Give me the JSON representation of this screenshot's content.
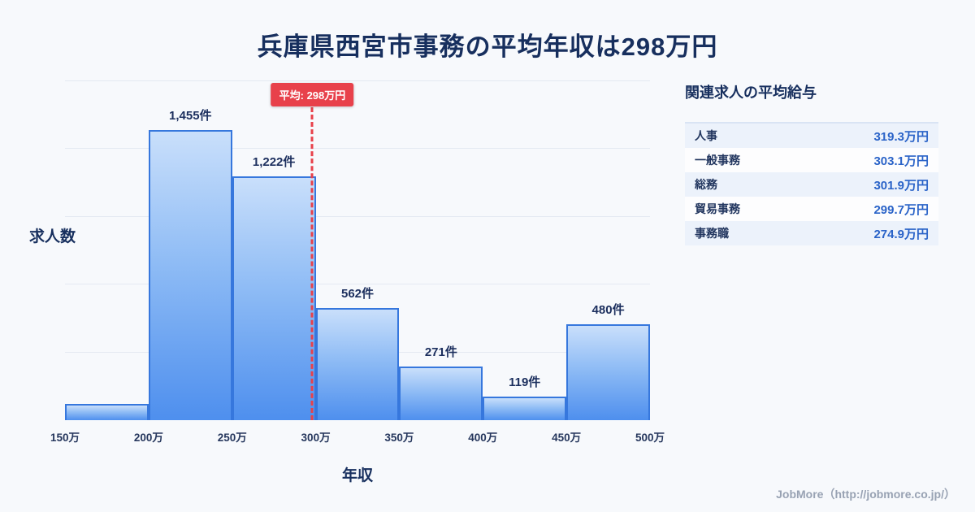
{
  "page_title": "兵庫県西宮市事務の平均年収は298万円",
  "chart_data": {
    "type": "bar",
    "title": "兵庫県西宮市事務の平均年収は298万円",
    "xlabel": "年収",
    "ylabel": "求人数",
    "x_range": [
      150,
      500
    ],
    "categories": [
      "150万",
      "200万",
      "250万",
      "300万",
      "350万",
      "400万",
      "450万",
      "500万"
    ],
    "values": [
      80,
      1455,
      1222,
      562,
      271,
      119,
      480
    ],
    "bar_labels": [
      "",
      "1,455件",
      "1,222件",
      "562件",
      "271件",
      "119件",
      "480件"
    ],
    "ylim": [
      0,
      1700
    ],
    "grid": true,
    "legend": "none",
    "average_line": {
      "value": 298,
      "label": "平均: 298万円",
      "color": "#e8414b"
    }
  },
  "side_panel": {
    "heading": "関連求人の平均給与",
    "rows": [
      {
        "label": "人事",
        "value": "319.3万円"
      },
      {
        "label": "一般事務",
        "value": "303.1万円"
      },
      {
        "label": "総務",
        "value": "301.9万円"
      },
      {
        "label": "貿易事務",
        "value": "299.7万円"
      },
      {
        "label": "事務職",
        "value": "274.9万円"
      }
    ]
  },
  "footer": {
    "credit": "JobMore（http://jobmore.co.jp/）"
  },
  "colors": {
    "background": "#f7f9fc",
    "title_navy": "#172f5e",
    "bar_border": "#3677dd",
    "bar_fill_top": "#c9dffb",
    "bar_fill_bottom": "#4e8fee",
    "average_red": "#e8414b",
    "value_blue": "#2a63c8",
    "row_alt_blue": "#ecf2fb"
  }
}
